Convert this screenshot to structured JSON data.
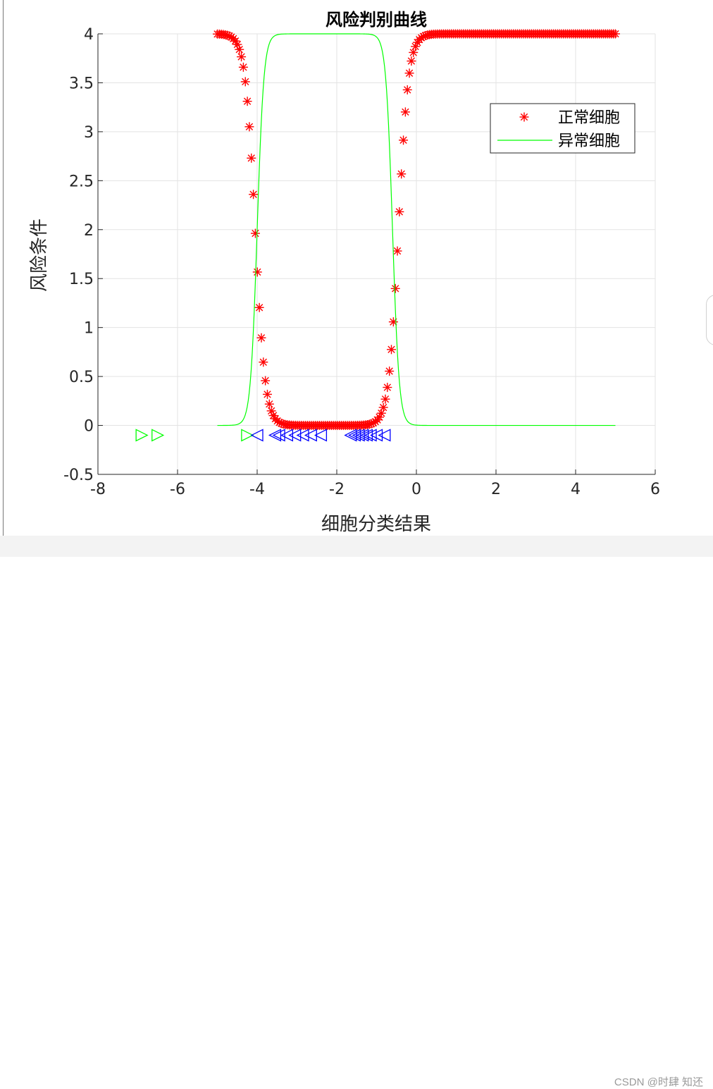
{
  "footer": {
    "watermark": "CSDN @时肆 知还"
  },
  "chart_data": {
    "type": "scatter",
    "title": "风险判别曲线",
    "xlabel": "细胞分类结果",
    "ylabel": "风险条件",
    "xlim": [
      -8,
      6
    ],
    "ylim": [
      -0.5,
      4
    ],
    "xticks": [
      -8,
      -6,
      -4,
      -2,
      0,
      2,
      4,
      6
    ],
    "yticks": [
      -0.5,
      0,
      0.5,
      1,
      1.5,
      2,
      2.5,
      3,
      3.5,
      4
    ],
    "xtick_labels": [
      "-8",
      "-6",
      "-4",
      "-2",
      "0",
      "2",
      "4",
      "6"
    ],
    "ytick_labels": [
      "-0.5",
      "0",
      "0.5",
      "1",
      "1.5",
      "2",
      "2.5",
      "3",
      "3.5",
      "4"
    ],
    "grid": true,
    "legend_position": "top-right",
    "legend": [
      "正常细胞",
      "异常细胞"
    ],
    "series": [
      {
        "name": "正常细胞",
        "marker": "asterisk",
        "color": "#ff0000",
        "function": "4 * (1 - 1/(1+exp(-8*(x+4.05)))*1/(1+exp(8*(x+0.45))))",
        "x_range": [
          -5,
          5
        ],
        "points": 200
      },
      {
        "name": "异常细胞",
        "marker": "line",
        "color": "#00ff00",
        "function": "4 / (1+exp(-12*(x+4))) / (1+exp(12*(x+0.6)))",
        "x_range": [
          -5,
          5
        ]
      },
      {
        "name": "",
        "marker": "triangle-right",
        "color": "#00ff00",
        "x": [
          -6.9,
          -6.5,
          -4.25
        ],
        "y": [
          -0.1,
          -0.1,
          -0.1
        ]
      },
      {
        "name": "",
        "marker": "triangle-left",
        "color": "#0000ff",
        "x": [
          -4.0,
          -3.55,
          -3.45,
          -3.25,
          -3.05,
          -2.85,
          -2.65,
          -2.4,
          -1.65,
          -1.55,
          -1.45,
          -1.35,
          -1.25,
          -1.15,
          -1.0,
          -0.8
        ],
        "y": [
          -0.1,
          -0.1,
          -0.1,
          -0.1,
          -0.1,
          -0.1,
          -0.1,
          -0.1,
          -0.1,
          -0.1,
          -0.1,
          -0.1,
          -0.1,
          -0.1,
          -0.1,
          -0.1
        ]
      }
    ]
  }
}
